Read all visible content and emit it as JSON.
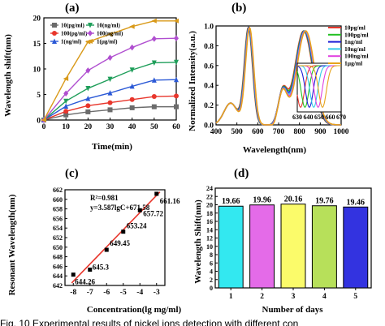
{
  "caption": "Fig. 10 Experimental results of nickel ions detection with different con",
  "chart_data": [
    {
      "panel": "(a)",
      "type": "line",
      "xlabel": "Time(min)",
      "ylabel": "Wavelength shift(nm)",
      "xlim": [
        0,
        60
      ],
      "ylim": [
        0,
        20
      ],
      "xticks": [
        0,
        10,
        20,
        30,
        40,
        50,
        60
      ],
      "yticks": [
        0,
        5,
        10,
        15,
        20
      ],
      "x": [
        0,
        10,
        20,
        30,
        40,
        50,
        60
      ],
      "legend_position": "top-left",
      "series": [
        {
          "name": "10(pg/ml)",
          "color": "#6b6b6b",
          "marker": "square",
          "values": [
            0,
            1.0,
            1.6,
            2.0,
            2.4,
            2.6,
            2.6
          ]
        },
        {
          "name": "100(pg/ml)",
          "color": "#e8362c",
          "marker": "circle",
          "values": [
            0,
            1.7,
            2.8,
            3.4,
            4.0,
            4.6,
            4.7
          ]
        },
        {
          "name": "1(ng/ml)",
          "color": "#2b59d6",
          "marker": "triangle",
          "values": [
            0,
            2.7,
            4.2,
            5.3,
            6.6,
            7.8,
            7.9
          ]
        },
        {
          "name": "10(ng/ml)",
          "color": "#1f9e5a",
          "marker": "triangle-down",
          "values": [
            0,
            3.7,
            6.2,
            8.0,
            9.8,
            11.2,
            11.3
          ]
        },
        {
          "name": "100(ng/ml)",
          "color": "#b04fd0",
          "marker": "diamond",
          "values": [
            0,
            5.2,
            9.7,
            12.2,
            14.2,
            15.9,
            16.0
          ]
        },
        {
          "name": "1(µg/ml)",
          "color": "#d99a1a",
          "marker": "triangle-left",
          "values": [
            0,
            8.1,
            15.3,
            16.8,
            18.3,
            19.4,
            19.4
          ]
        }
      ]
    },
    {
      "panel": "(b)",
      "type": "line",
      "xlabel": "Wavelength(nm)",
      "ylabel": "Normalized Intensity(a.u.)",
      "xlim": [
        400,
        1000
      ],
      "ylim": [
        0,
        1.0
      ],
      "xticks": [
        400,
        500,
        600,
        700,
        800,
        900,
        1000
      ],
      "yticks": [
        0.0,
        0.2,
        0.4,
        0.6,
        0.8,
        1.0
      ],
      "legend_position": "top-right",
      "series": [
        {
          "name": "10pg/ml",
          "color": "#e8362c",
          "shift": 0
        },
        {
          "name": "100pg/ml",
          "color": "#22c022",
          "shift": 4
        },
        {
          "name": "1ng/ml",
          "color": "#1c1cd6",
          "shift": 8
        },
        {
          "name": "10ng/ml",
          "color": "#33c9e8",
          "shift": 12
        },
        {
          "name": "100ng/ml",
          "color": "#e040e0",
          "shift": 16
        },
        {
          "name": "1µg/ml",
          "color": "#e6a31a",
          "shift": 20
        }
      ],
      "inset": {
        "xticks": [
          630,
          640,
          650,
          660,
          670
        ],
        "xlim": [
          630,
          670
        ]
      }
    },
    {
      "panel": "(c)",
      "type": "scatter",
      "xlabel": "Concentration(lg mg/ml)",
      "ylabel": "Resonant Wavelength(nm)",
      "xlim": [
        -8.5,
        -2.5
      ],
      "ylim": [
        642,
        662
      ],
      "xticks": [
        -8,
        -7,
        -6,
        -5,
        -4,
        -3
      ],
      "yticks": [
        642,
        644,
        646,
        648,
        650,
        652,
        654,
        656,
        658,
        660,
        662
      ],
      "x": [
        -8,
        -7,
        -6,
        -5,
        -4,
        -3
      ],
      "values": [
        644.26,
        645.3,
        649.45,
        653.24,
        657.72,
        661.16
      ],
      "point_labels": [
        "644.26",
        "645.3",
        "649.45",
        "653.24",
        "657.72",
        "661.16"
      ],
      "fit": {
        "slope": 3.587,
        "intercept": 671.58,
        "color": "#e8362c"
      },
      "annotation_r2": "R²=0.981",
      "annotation_eq": "y=3.587lgC+671.58"
    },
    {
      "panel": "(d)",
      "type": "bar",
      "xlabel": "Number of days",
      "ylabel": "Wavelength Shift(nm)",
      "ylim": [
        0,
        24
      ],
      "yticks": [
        0,
        2,
        4,
        6,
        8,
        10,
        12,
        14,
        16,
        18,
        20,
        22,
        24
      ],
      "categories": [
        "1",
        "2",
        "3",
        "4",
        "5"
      ],
      "values": [
        19.66,
        19.96,
        20.16,
        19.76,
        19.46
      ],
      "value_labels": [
        "19.66",
        "19.96",
        "20.16",
        "19.76",
        "19.46"
      ],
      "colors": [
        "#33e8f0",
        "#e46be8",
        "#fbfb6a",
        "#b7e05a",
        "#3333e0"
      ]
    }
  ]
}
